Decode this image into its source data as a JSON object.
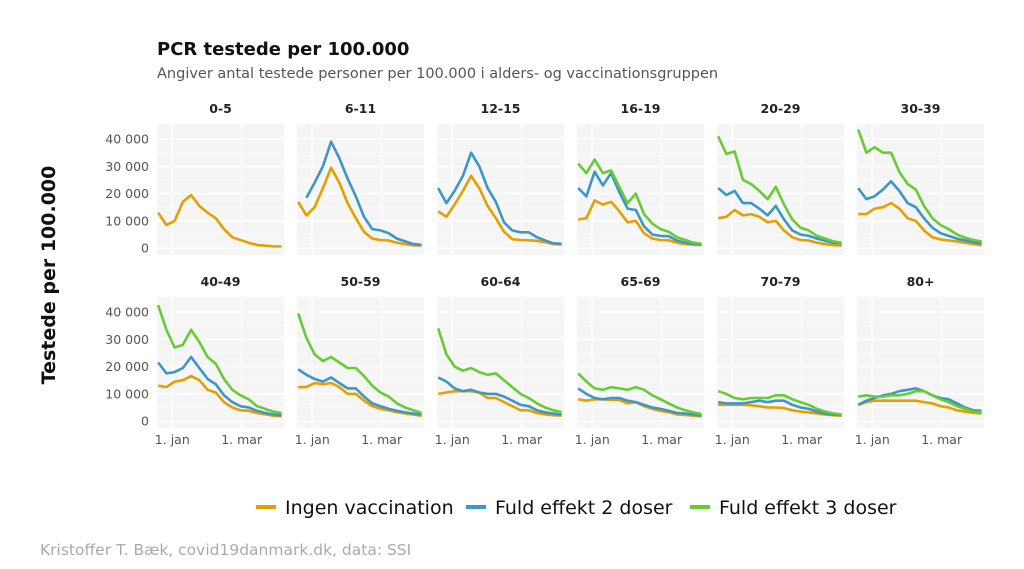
{
  "chart_data": {
    "type": "line",
    "title": "PCR testede per 100.000",
    "subtitle": "Angiver antal testede personer per 100.000 i alders- og vaccinationsgruppen",
    "ylabel": "Testede per 100.000",
    "xlabel": "",
    "caption": "Kristoffer T. Bæk, covid19danmark.dk, data: SSI",
    "ylim": [
      0,
      45000
    ],
    "yticks": [
      0,
      10000,
      20000,
      30000,
      40000
    ],
    "ytick_labels": [
      "0",
      "10 000",
      "20 000",
      "30 000",
      "40 000"
    ],
    "x_unit": "days relative to 1. jan",
    "xticks": [
      0,
      59
    ],
    "xtick_labels": [
      "1. jan",
      "1. mar"
    ],
    "x": [
      -12,
      -5,
      2,
      9,
      16,
      23,
      30,
      37,
      44,
      51,
      58,
      65,
      72,
      79,
      86,
      93
    ],
    "grid": true,
    "legend_position": "bottom",
    "legend": [
      {
        "name": "Ingen vaccination",
        "color": "#E69F00"
      },
      {
        "name": "Fuld effekt 2 doser",
        "color": "#3C96C8"
      },
      {
        "name": "Fuld effekt 3 doser",
        "color": "#66CC33"
      }
    ],
    "panels": [
      {
        "label": "0-5",
        "series": [
          [
            13000,
            8500,
            10000,
            17000,
            19500,
            15500,
            13000,
            11000,
            7000,
            4000,
            3000,
            2000,
            1200,
            900,
            700,
            600
          ],
          null,
          null
        ]
      },
      {
        "label": "6-11",
        "series": [
          [
            17000,
            12000,
            15000,
            22000,
            29500,
            24000,
            16500,
            11000,
            6000,
            3500,
            3000,
            2800,
            2000,
            1500,
            1000,
            1000
          ],
          [
            null,
            18500,
            24000,
            30000,
            39000,
            33000,
            25500,
            19000,
            11500,
            7000,
            6500,
            5500,
            3500,
            2500,
            1500,
            1200
          ],
          null
        ]
      },
      {
        "label": "12-15",
        "series": [
          [
            13500,
            11500,
            16000,
            21000,
            26500,
            22000,
            15500,
            11000,
            6000,
            3300,
            3000,
            2900,
            2700,
            2200,
            1500,
            1400
          ],
          [
            22000,
            16500,
            21000,
            26500,
            35000,
            30000,
            22000,
            17000,
            9500,
            6500,
            5800,
            5800,
            4000,
            2800,
            1800,
            1600
          ],
          null
        ]
      },
      {
        "label": "16-19",
        "series": [
          [
            10500,
            11000,
            17500,
            16000,
            17000,
            13500,
            9500,
            10000,
            5500,
            3500,
            3000,
            2900,
            2000,
            1500,
            1300,
            1200
          ],
          [
            22000,
            19000,
            28000,
            23000,
            27500,
            20500,
            14500,
            14000,
            8000,
            5000,
            4500,
            4400,
            2800,
            2000,
            1500,
            1300
          ],
          [
            31000,
            27500,
            32500,
            27500,
            28500,
            22500,
            16500,
            20000,
            12500,
            9000,
            7000,
            6000,
            4000,
            3000,
            2000,
            1600
          ]
        ]
      },
      {
        "label": "20-29",
        "series": [
          [
            11000,
            11500,
            14000,
            12000,
            12500,
            11500,
            9500,
            10000,
            6500,
            4000,
            3000,
            2800,
            2000,
            1500,
            1100,
            1000
          ],
          [
            22000,
            19500,
            21000,
            16500,
            16500,
            14500,
            12000,
            15500,
            10500,
            6500,
            5000,
            4500,
            3500,
            2700,
            2000,
            1700
          ],
          [
            41000,
            34500,
            35500,
            25000,
            23500,
            21000,
            18000,
            22500,
            16000,
            10500,
            7500,
            6500,
            4500,
            3500,
            2500,
            2000
          ]
        ]
      },
      {
        "label": "30-39",
        "series": [
          [
            12500,
            12500,
            14500,
            15000,
            16500,
            14500,
            11000,
            10000,
            6500,
            4000,
            3200,
            2800,
            2500,
            2000,
            1500,
            1100
          ],
          [
            22000,
            18000,
            19000,
            21500,
            24500,
            21000,
            16500,
            15000,
            11000,
            7500,
            5500,
            4500,
            3500,
            2800,
            2200,
            1800
          ],
          [
            43500,
            35000,
            37000,
            35000,
            35000,
            28000,
            23500,
            21500,
            15500,
            11000,
            8500,
            7000,
            5000,
            3800,
            3000,
            2500
          ]
        ]
      },
      {
        "label": "40-49",
        "series": [
          [
            13000,
            12500,
            14500,
            15000,
            16500,
            15000,
            11500,
            10500,
            7000,
            5000,
            4000,
            3800,
            3000,
            2500,
            2000,
            1800
          ],
          [
            21500,
            17500,
            18000,
            19500,
            23500,
            19500,
            15500,
            13500,
            9500,
            7000,
            5500,
            5000,
            3800,
            3000,
            2500,
            2200
          ],
          [
            42500,
            33500,
            27000,
            28000,
            33500,
            29000,
            23500,
            21000,
            15500,
            11500,
            9500,
            8000,
            5500,
            4500,
            3500,
            3000
          ]
        ]
      },
      {
        "label": "50-59",
        "series": [
          [
            12500,
            12500,
            14000,
            13500,
            14000,
            12500,
            10000,
            10000,
            7500,
            5500,
            4500,
            4000,
            3300,
            2800,
            2400,
            2000
          ],
          [
            19000,
            17000,
            15500,
            14500,
            16000,
            14000,
            12000,
            12000,
            9000,
            6500,
            5500,
            4500,
            3800,
            3200,
            2800,
            2400
          ],
          [
            39500,
            30500,
            24500,
            22000,
            23500,
            21500,
            19500,
            19500,
            16500,
            13000,
            10500,
            9000,
            6500,
            5000,
            4000,
            3000
          ]
        ]
      },
      {
        "label": "60-64",
        "series": [
          [
            10000,
            10500,
            11000,
            11000,
            11000,
            10500,
            8500,
            8500,
            7000,
            5500,
            4000,
            4000,
            3000,
            2500,
            2200,
            2000
          ],
          [
            16000,
            14500,
            12000,
            11000,
            11500,
            10500,
            10000,
            10000,
            9000,
            7500,
            6000,
            5500,
            4000,
            3200,
            2800,
            2300
          ],
          [
            34000,
            24500,
            20000,
            18500,
            19500,
            18000,
            17000,
            17500,
            15000,
            12500,
            10000,
            8500,
            6500,
            5000,
            4000,
            3300
          ]
        ]
      },
      {
        "label": "65-69",
        "series": [
          [
            8000,
            7500,
            8000,
            8000,
            7800,
            7800,
            6500,
            7000,
            5500,
            4500,
            3800,
            3300,
            2500,
            2300,
            2000,
            1800
          ],
          [
            12000,
            10000,
            8500,
            8000,
            8500,
            8500,
            7500,
            7000,
            6000,
            5000,
            4500,
            3800,
            3000,
            2800,
            2400,
            2000
          ],
          [
            17500,
            14500,
            12000,
            11500,
            12500,
            12000,
            11500,
            12500,
            11500,
            9500,
            8000,
            6500,
            5000,
            4000,
            3200,
            2600
          ]
        ]
      },
      {
        "label": "70-79",
        "series": [
          [
            6000,
            6000,
            6000,
            6000,
            5800,
            5500,
            5000,
            5000,
            4800,
            4000,
            3500,
            3200,
            2800,
            2400,
            2200,
            2000
          ],
          [
            7000,
            6500,
            6500,
            6500,
            7000,
            7500,
            7000,
            7500,
            7500,
            6000,
            5000,
            4500,
            3500,
            2800,
            2400,
            2200
          ],
          [
            11000,
            10000,
            8500,
            8000,
            8500,
            8500,
            8500,
            9500,
            9500,
            8000,
            7000,
            6000,
            4500,
            3500,
            2800,
            2500
          ]
        ]
      },
      {
        "label": "80+",
        "series": [
          [
            6000,
            7000,
            7500,
            7500,
            7500,
            7500,
            7500,
            7500,
            7000,
            6500,
            5500,
            5000,
            4000,
            3500,
            3000,
            2800
          ],
          [
            6000,
            7500,
            8500,
            9500,
            10000,
            11000,
            11500,
            12000,
            11000,
            9500,
            8500,
            8000,
            6500,
            5000,
            4000,
            3800
          ],
          [
            9000,
            9500,
            9000,
            9000,
            9500,
            9500,
            10000,
            11000,
            11000,
            9500,
            8000,
            7000,
            5500,
            4500,
            3500,
            3200
          ]
        ]
      }
    ]
  }
}
